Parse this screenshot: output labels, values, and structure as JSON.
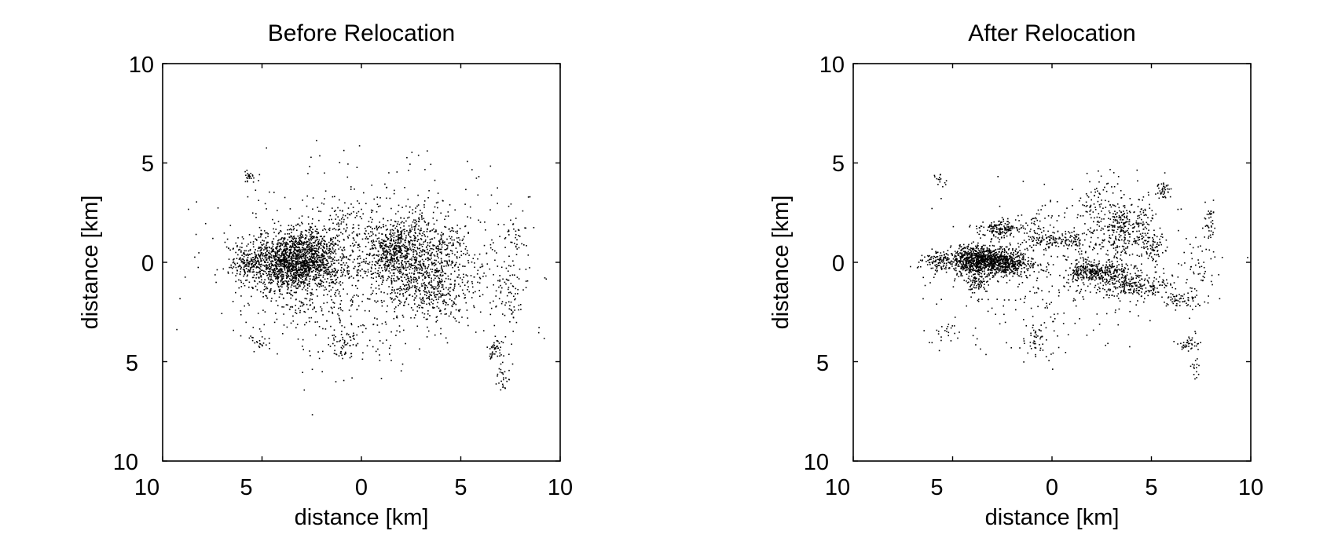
{
  "chart_data": [
    {
      "type": "scatter",
      "title": "Before Relocation",
      "xlabel": "distance [km]",
      "ylabel": "distance [km]",
      "xlim": [
        -10,
        10
      ],
      "ylim": [
        -10,
        10
      ],
      "y_reversed": true,
      "grid": false,
      "legend": "none",
      "x_ticks": [
        -10,
        -5,
        0,
        5,
        10
      ],
      "x_tick_labels": [
        "10",
        "5",
        "0",
        "5",
        "10"
      ],
      "y_ticks": [
        -10,
        -5,
        0,
        5,
        10
      ],
      "y_tick_labels": [
        "10",
        "5",
        "0",
        "5",
        "10"
      ],
      "marker_color": "#000000",
      "clusters": [
        {
          "center": [
            -3.6,
            0.0
          ],
          "spread": [
            1.05,
            0.75
          ],
          "count": 1300
        },
        {
          "center": [
            -2.4,
            0.3
          ],
          "spread": [
            0.9,
            0.7
          ],
          "count": 500
        },
        {
          "center": [
            2.6,
            0.5
          ],
          "spread": [
            1.4,
            1.0
          ],
          "count": 800
        },
        {
          "center": [
            3.8,
            -1.4
          ],
          "spread": [
            1.1,
            0.7
          ],
          "count": 300
        },
        {
          "center": [
            1.5,
            0.6
          ],
          "spread": [
            0.6,
            0.6
          ],
          "count": 200
        },
        {
          "center": [
            -5.8,
            0.0
          ],
          "spread": [
            0.45,
            0.45
          ],
          "count": 150
        },
        {
          "center": [
            -5.6,
            4.3
          ],
          "spread": [
            0.25,
            0.15
          ],
          "count": 25
        },
        {
          "center": [
            -5.2,
            -3.9
          ],
          "spread": [
            0.3,
            0.3
          ],
          "count": 25
        },
        {
          "center": [
            -0.9,
            -4.2
          ],
          "spread": [
            0.35,
            0.45
          ],
          "count": 60
        },
        {
          "center": [
            6.8,
            -4.4
          ],
          "spread": [
            0.3,
            0.3
          ],
          "count": 50
        },
        {
          "center": [
            7.2,
            -5.7
          ],
          "spread": [
            0.2,
            0.35
          ],
          "count": 25
        },
        {
          "center": [
            7.5,
            -1.7
          ],
          "spread": [
            0.4,
            1.0
          ],
          "count": 70
        },
        {
          "center": [
            7.8,
            1.2
          ],
          "spread": [
            0.5,
            0.9
          ],
          "count": 50
        },
        {
          "center": [
            0.5,
            -0.4
          ],
          "spread": [
            3.5,
            2.3
          ],
          "count": 700
        },
        {
          "center": [
            -0.8,
            2.0
          ],
          "spread": [
            0.6,
            0.8
          ],
          "count": 80
        },
        {
          "center": [
            -2.5,
            -2.0
          ],
          "spread": [
            1.5,
            1.2
          ],
          "count": 120
        }
      ]
    },
    {
      "type": "scatter",
      "title": "After Relocation",
      "xlabel": "distance [km]",
      "ylabel": "distance [km]",
      "xlim": [
        -10,
        10
      ],
      "ylim": [
        -10,
        10
      ],
      "y_reversed": true,
      "grid": false,
      "legend": "none",
      "x_ticks": [
        -10,
        -5,
        0,
        5,
        10
      ],
      "x_tick_labels": [
        "10",
        "5",
        "0",
        "5",
        "10"
      ],
      "y_ticks": [
        -10,
        -5,
        0,
        5,
        10
      ],
      "y_tick_labels": [
        "10",
        "5",
        "0",
        "5",
        "10"
      ],
      "marker_color": "#000000",
      "clusters": [
        {
          "center": [
            -3.6,
            0.1
          ],
          "spread": [
            0.8,
            0.35
          ],
          "count": 900
        },
        {
          "center": [
            -2.2,
            -0.1
          ],
          "spread": [
            0.7,
            0.3
          ],
          "count": 350
        },
        {
          "center": [
            -2.6,
            1.7
          ],
          "spread": [
            0.5,
            0.2
          ],
          "count": 150
        },
        {
          "center": [
            -3.8,
            -1.0
          ],
          "spread": [
            0.35,
            0.3
          ],
          "count": 80
        },
        {
          "center": [
            -5.8,
            0.1
          ],
          "spread": [
            0.45,
            0.25
          ],
          "count": 100
        },
        {
          "center": [
            0.6,
            1.1
          ],
          "spread": [
            0.9,
            0.2
          ],
          "count": 120
        },
        {
          "center": [
            2.6,
            -0.5
          ],
          "spread": [
            0.7,
            0.25
          ],
          "count": 250
        },
        {
          "center": [
            4.0,
            -1.2
          ],
          "spread": [
            1.0,
            0.3
          ],
          "count": 220
        },
        {
          "center": [
            3.4,
            1.7
          ],
          "spread": [
            0.35,
            0.9
          ],
          "count": 180
        },
        {
          "center": [
            4.5,
            1.6
          ],
          "spread": [
            0.35,
            0.8
          ],
          "count": 120
        },
        {
          "center": [
            1.5,
            -0.4
          ],
          "spread": [
            0.35,
            0.35
          ],
          "count": 100
        },
        {
          "center": [
            2.2,
            2.5
          ],
          "spread": [
            0.4,
            0.9
          ],
          "count": 90
        },
        {
          "center": [
            5.6,
            3.7
          ],
          "spread": [
            0.2,
            0.25
          ],
          "count": 40
        },
        {
          "center": [
            5.2,
            0.6
          ],
          "spread": [
            0.3,
            0.4
          ],
          "count": 60
        },
        {
          "center": [
            6.5,
            -1.9
          ],
          "spread": [
            0.5,
            0.2
          ],
          "count": 60
        },
        {
          "center": [
            7.9,
            1.8
          ],
          "spread": [
            0.15,
            0.6
          ],
          "count": 40
        },
        {
          "center": [
            7.4,
            -0.5
          ],
          "spread": [
            0.4,
            0.8
          ],
          "count": 50
        },
        {
          "center": [
            6.9,
            -4.1
          ],
          "spread": [
            0.25,
            0.2
          ],
          "count": 40
        },
        {
          "center": [
            7.2,
            -5.4
          ],
          "spread": [
            0.1,
            0.25
          ],
          "count": 15
        },
        {
          "center": [
            -5.6,
            4.1
          ],
          "spread": [
            0.15,
            0.15
          ],
          "count": 15
        },
        {
          "center": [
            -0.8,
            -3.9
          ],
          "spread": [
            0.25,
            0.45
          ],
          "count": 45
        },
        {
          "center": [
            -5.4,
            -3.6
          ],
          "spread": [
            0.25,
            0.3
          ],
          "count": 20
        },
        {
          "center": [
            0.8,
            -0.6
          ],
          "spread": [
            3.3,
            2.0
          ],
          "count": 400
        },
        {
          "center": [
            -1.0,
            1.4
          ],
          "spread": [
            0.7,
            0.6
          ],
          "count": 70
        }
      ]
    }
  ]
}
